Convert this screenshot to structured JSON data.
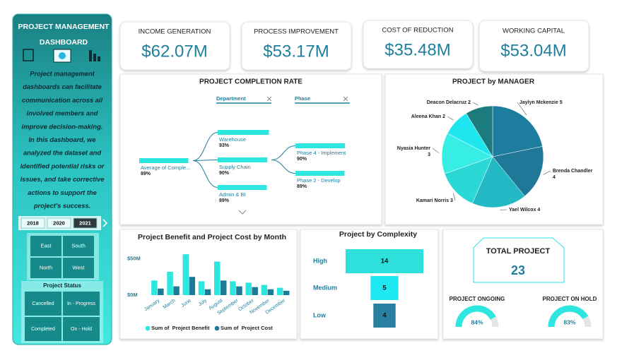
{
  "sidebar": {
    "title_lines": [
      "PROJECT MANAGEMENT",
      "DASHBOARD"
    ],
    "description_lines": [
      "Project management",
      "dashboards can facilitate",
      "communication across all",
      "involved members and",
      "improve decision-making.",
      "In this dashboard, we",
      "analyzed the dataset and",
      "identified potential risks or",
      "issues, and take corrective",
      "actions to support the",
      "project's success."
    ],
    "years": [
      "2018",
      "2020",
      "2021"
    ],
    "regions": [
      "East",
      "South",
      "North",
      "West"
    ],
    "status_title": "Project Status",
    "statuses": [
      "Cancelled",
      "In - Progress",
      "Completed",
      "On - Hold"
    ]
  },
  "kpis": [
    {
      "label": "INCOME GENERATION",
      "value": "$62.07M"
    },
    {
      "label": "PROCESS IMPROVEMENT",
      "value": "$53.17M"
    },
    {
      "label": "COST OF REDUCTION",
      "value": "$35.48M"
    },
    {
      "label": "WORKING CAPITAL",
      "value": "$53.04M"
    }
  ],
  "total": {
    "label": "TOTAL PROJECT",
    "value": "23"
  },
  "chart_data": [
    {
      "type": "tree",
      "title": "PROJECT COMPLETION RATE",
      "filters": [
        "Department",
        "Phase"
      ],
      "color": "#2ee6e0",
      "levels": [
        {
          "categories": [
            "Average of Comple..."
          ],
          "values": [
            89
          ],
          "value_labels": [
            "89%"
          ]
        },
        {
          "categories": [
            "Warehouse",
            "Supply Chain",
            "Admin & BI"
          ],
          "values": [
            93,
            90,
            89
          ],
          "value_labels": [
            "93%",
            "90%",
            "89%"
          ]
        },
        {
          "categories": [
            "Phase 4 - Implement",
            "Phase 2 - Develop"
          ],
          "values": [
            90,
            89
          ],
          "value_labels": [
            "90%",
            "89%"
          ]
        }
      ]
    },
    {
      "type": "pie",
      "title": "PROJECT by MANAGER",
      "categories": [
        "Jaylyn Mckenzie",
        "Brenda Chandler",
        "Yael Wilcox",
        "Kamari Norris",
        "Nyasia Hunter",
        "Aleena Khan",
        "Deacon Delacruz"
      ],
      "values": [
        5,
        4,
        4,
        3,
        3,
        2,
        2
      ],
      "colors": [
        "#1d7d9e",
        "#1f7898",
        "#22b9c4",
        "#2ad9d6",
        "#36eee4",
        "#1ee6ef",
        "#1c7b7d"
      ]
    },
    {
      "type": "bar",
      "title": "Project Benefit and Project Cost by Month",
      "categories": [
        "January",
        "March",
        "June",
        "July",
        "August",
        "September",
        "October",
        "November",
        "December"
      ],
      "series": [
        {
          "name": "Sum of  Project Benefit",
          "color": "#2ee6e0",
          "values": [
            20,
            32,
            56,
            19,
            46,
            19,
            17,
            14,
            10
          ]
        },
        {
          "name": "Sum of  Project Cost",
          "color": "#1d7a96",
          "values": [
            9,
            12,
            25,
            8,
            20,
            12,
            11,
            8,
            6
          ]
        }
      ],
      "ylim": [
        0,
        60
      ],
      "yticks": [
        {
          "value": 0,
          "label": "$0M"
        },
        {
          "value": 50,
          "label": "$50M"
        }
      ]
    },
    {
      "type": "funnel",
      "title": "Project by Complexity",
      "categories": [
        "High",
        "Medium",
        "Low"
      ],
      "values": [
        14,
        5,
        4
      ],
      "colors": [
        "#2de0dc",
        "#1ee8f2",
        "#2a7fa0"
      ]
    },
    {
      "type": "gauge",
      "categories": [
        "PROJECT ONGOING",
        "PROJECT ON HOLD"
      ],
      "values": [
        84,
        83
      ],
      "value_labels": [
        "84%",
        "83%"
      ],
      "ylim": [
        0,
        100
      ],
      "color": "#2ee6e0"
    }
  ]
}
